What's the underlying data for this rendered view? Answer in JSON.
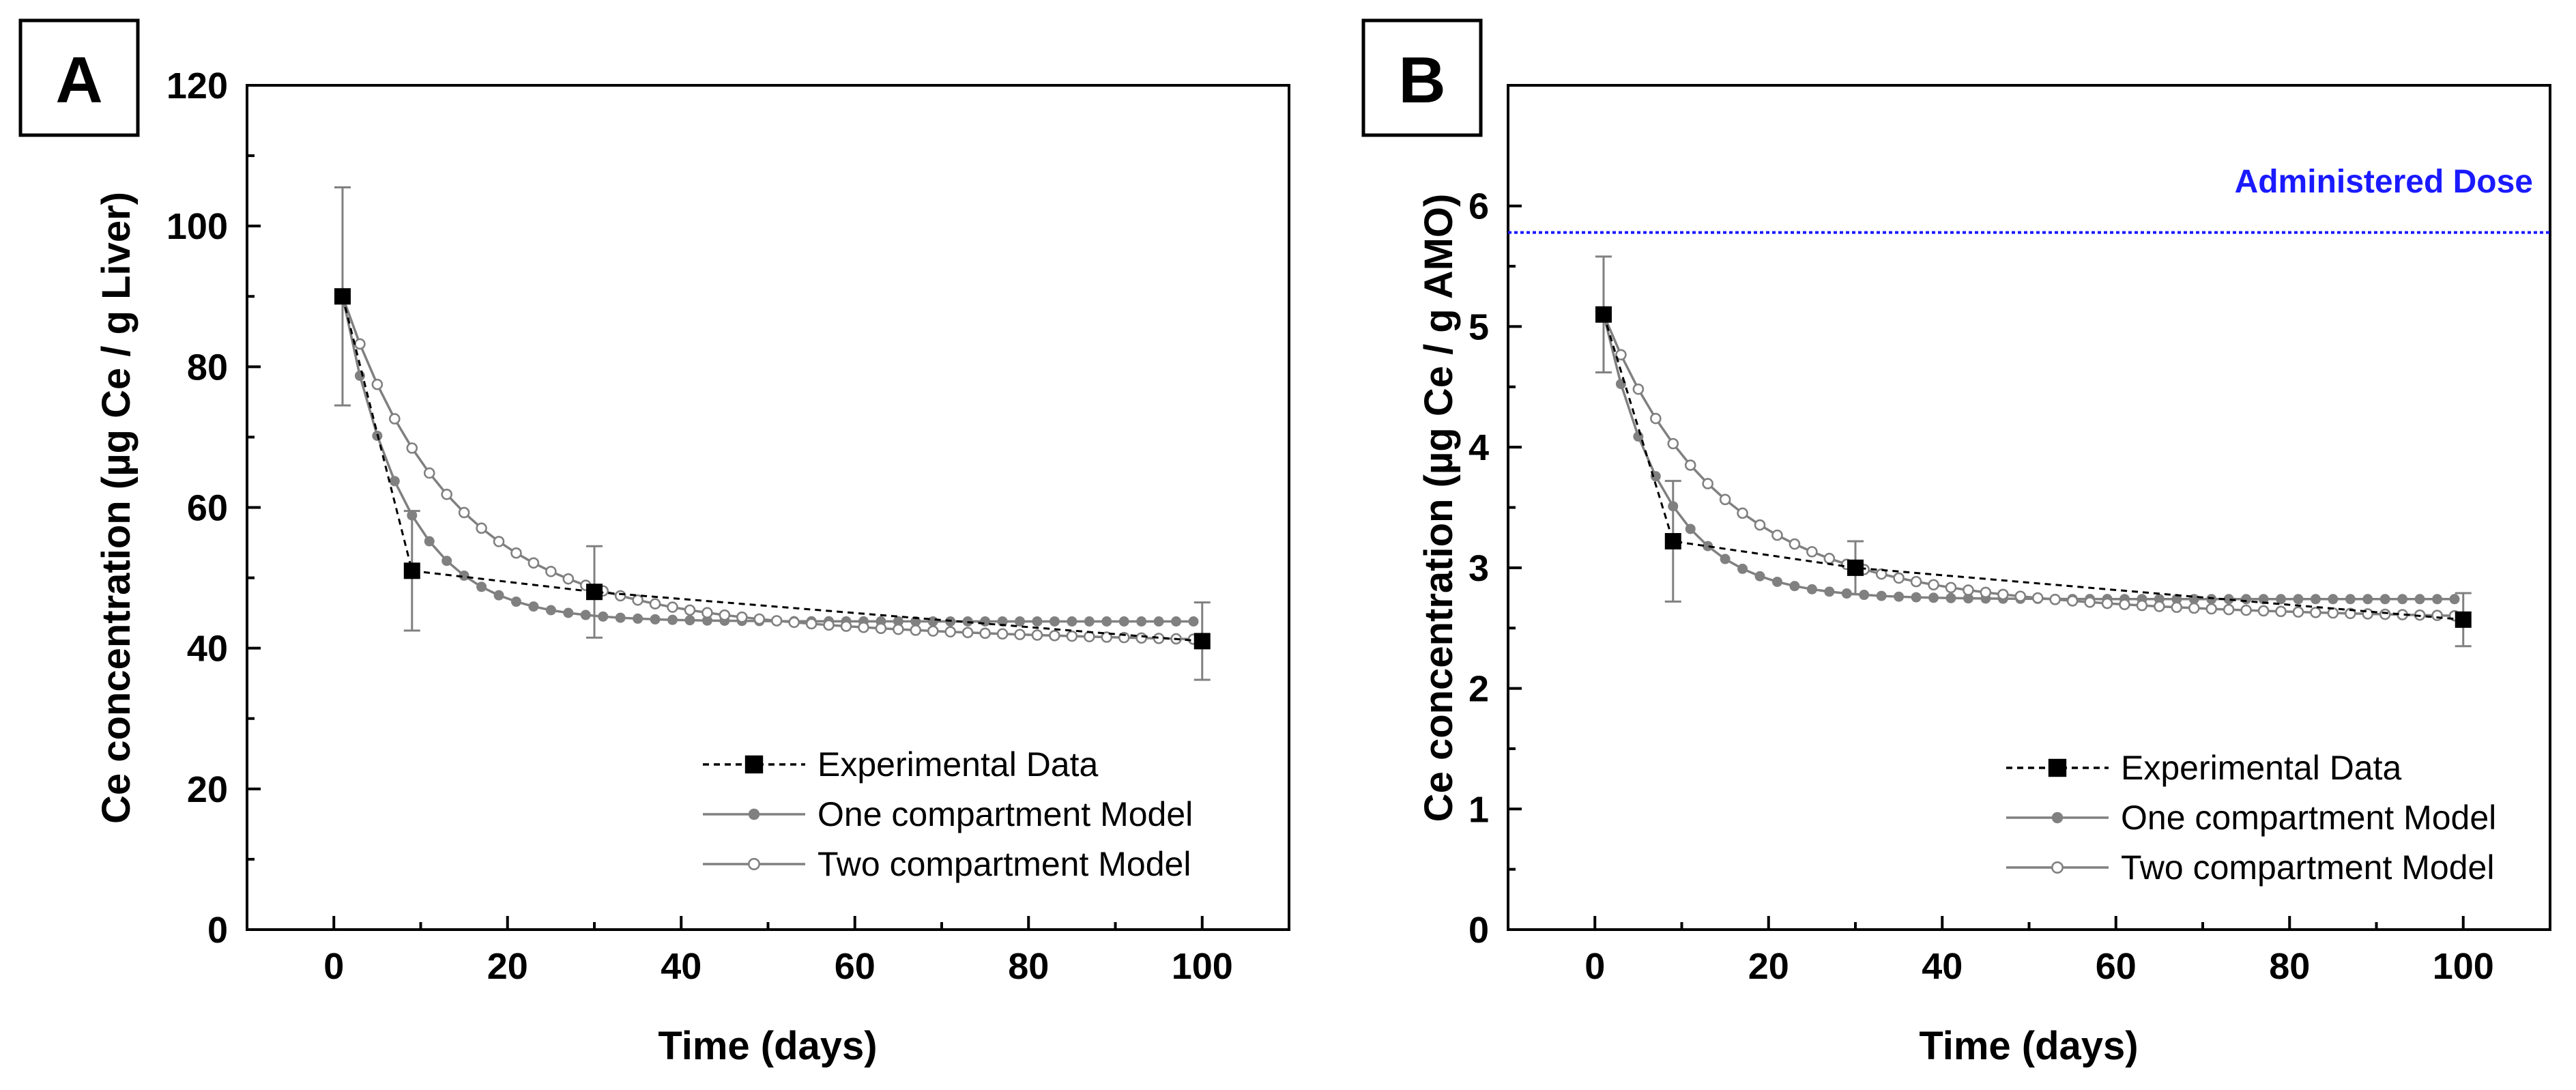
{
  "chart_data": [
    {
      "panel": "A",
      "type": "line",
      "xlabel": "Time (days)",
      "ylabel": "Ce concentration (µg Ce / g Liver)",
      "xlim": [
        -10,
        110
      ],
      "ylim": [
        0,
        120
      ],
      "xticks": [
        0,
        20,
        40,
        60,
        80,
        100
      ],
      "yticks": [
        0,
        20,
        40,
        60,
        80,
        100,
        120
      ],
      "legend_position": "bottom-right",
      "series": [
        {
          "name": "Experimental Data",
          "marker": "filled-square",
          "line": "dashed",
          "color": "#000000",
          "x": [
            1,
            9,
            30,
            100
          ],
          "y": [
            90,
            51,
            48,
            41
          ],
          "err": [
            15.5,
            8.5,
            6.5,
            5.5
          ]
        },
        {
          "name": "One compartment Model",
          "marker": "filled-circle",
          "line": "solid",
          "color": "#808080",
          "model": {
            "c0": 90,
            "cinf": 43.8,
            "k": 0.14,
            "from": 1,
            "to": 100,
            "step": 2
          }
        },
        {
          "name": "Two compartment Model",
          "marker": "open-circle",
          "line": "solid",
          "color": "#808080",
          "model": {
            "c0": 90,
            "A": 41,
            "k1": 0.085,
            "B": 9,
            "k2": 0.02,
            "cinf": 40,
            "from": 1,
            "to": 100,
            "step": 2
          }
        }
      ]
    },
    {
      "panel": "B",
      "type": "line",
      "xlabel": "Time (days)",
      "ylabel": "Ce concentration (µg Ce / g AMO)",
      "xlim": [
        -10,
        110
      ],
      "ylim": [
        0,
        7
      ],
      "xticks": [
        0,
        20,
        40,
        60,
        80,
        100
      ],
      "yticks": [
        0,
        1,
        2,
        3,
        4,
        5,
        6
      ],
      "legend_position": "bottom-right",
      "reference_line": {
        "label": "Administered Dose",
        "y": 5.78,
        "color": "#1a1aff"
      },
      "series": [
        {
          "name": "Experimental Data",
          "marker": "filled-square",
          "line": "dashed",
          "color": "#000000",
          "x": [
            1,
            9,
            30,
            100
          ],
          "y": [
            5.1,
            3.22,
            3.0,
            2.57
          ],
          "err": [
            0.48,
            0.5,
            0.22,
            0.22
          ]
        },
        {
          "name": "One compartment Model",
          "marker": "filled-circle",
          "line": "solid",
          "color": "#808080",
          "model": {
            "c0": 5.1,
            "cinf": 2.74,
            "k": 0.14,
            "from": 1,
            "to": 100,
            "step": 2
          }
        },
        {
          "name": "Two compartment Model",
          "marker": "open-circle",
          "line": "solid",
          "color": "#808080",
          "model": {
            "c0": 5.1,
            "A": 1.95,
            "k1": 0.085,
            "B": 0.6,
            "k2": 0.025,
            "cinf": 2.55,
            "from": 1,
            "to": 100,
            "step": 2
          }
        }
      ]
    }
  ]
}
